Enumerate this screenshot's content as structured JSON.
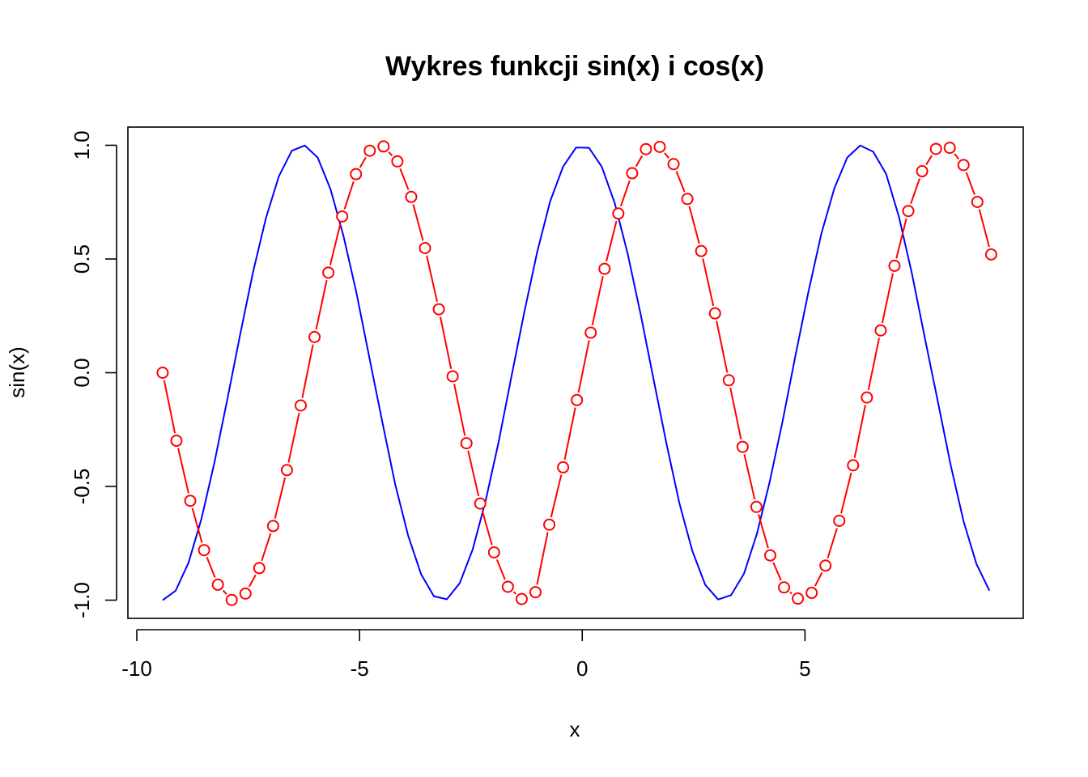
{
  "chart_data": {
    "type": "line",
    "title": "Wykres funkcji sin(x) i cos(x)",
    "xlabel": "x",
    "ylabel": "sin(x)",
    "xlim": [
      -10.2,
      9.9
    ],
    "ylim": [
      -1.08,
      1.08
    ],
    "x_ticks": [
      -10,
      -5,
      0,
      5
    ],
    "y_ticks": [
      -1.0,
      -0.5,
      0.0,
      0.5,
      1.0
    ],
    "x_tick_labels": [
      "-10",
      "-5",
      "0",
      "5"
    ],
    "y_tick_labels": [
      "-1.0",
      "-0.5",
      "0.0",
      "0.5",
      "1.0"
    ],
    "grid": false,
    "series": [
      {
        "function": "cos",
        "style": "line",
        "color": "#0000ff",
        "x": [
          -9.42,
          -9.13,
          -8.84,
          -8.55,
          -8.26,
          -7.97,
          -7.68,
          -7.39,
          -7.1,
          -6.81,
          -6.52,
          -6.23,
          -5.94,
          -5.65,
          -5.36,
          -5.07,
          -4.78,
          -4.49,
          -4.2,
          -3.91,
          -3.62,
          -3.33,
          -3.04,
          -2.75,
          -2.46,
          -2.17,
          -1.88,
          -1.59,
          -1.3,
          -1.01,
          -0.72,
          -0.43,
          -0.14,
          0.15,
          0.44,
          0.73,
          1.02,
          1.31,
          1.6,
          1.89,
          2.18,
          2.47,
          2.76,
          3.05,
          3.34,
          3.63,
          3.92,
          4.21,
          4.5,
          4.79,
          5.08,
          5.37,
          5.66,
          5.95,
          6.24,
          6.53,
          6.82,
          7.11,
          7.4,
          7.69,
          7.98,
          8.27,
          8.56,
          8.85,
          9.14
        ],
        "y": [
          -1.0,
          -0.959,
          -0.836,
          -0.643,
          -0.397,
          -0.119,
          0.168,
          0.443,
          0.681,
          0.864,
          0.976,
          0.999,
          0.946,
          0.806,
          0.601,
          0.352,
          0.067,
          -0.215,
          -0.49,
          -0.715,
          -0.885,
          -0.983,
          -0.996,
          -0.925,
          -0.777,
          -0.564,
          -0.307,
          -0.017,
          0.267,
          0.532,
          0.754,
          0.906,
          0.99,
          0.989,
          0.905,
          0.745,
          0.523,
          0.258,
          -0.028,
          -0.311,
          -0.573,
          -0.783,
          -0.932,
          -0.997,
          -0.978,
          -0.884,
          -0.709,
          -0.478,
          -0.211,
          0.079,
          0.358,
          0.613,
          0.811,
          0.946,
          0.999,
          0.972,
          0.875,
          0.685,
          0.437,
          0.154,
          -0.124,
          -0.405,
          -0.653,
          -0.841,
          -0.958
        ]
      },
      {
        "function": "sin",
        "style": "both",
        "color": "#ff0000",
        "x": [
          -9.42,
          -9.11,
          -8.8,
          -8.49,
          -8.18,
          -7.87,
          -7.56,
          -7.25,
          -6.94,
          -6.63,
          -6.32,
          -6.01,
          -5.7,
          -5.39,
          -5.08,
          -4.77,
          -4.46,
          -4.15,
          -3.84,
          -3.53,
          -3.22,
          -2.91,
          -2.6,
          -2.29,
          -1.98,
          -1.67,
          -1.36,
          -1.05,
          -0.74,
          -0.43,
          -0.12,
          0.19,
          0.5,
          0.81,
          1.12,
          1.43,
          1.74,
          2.05,
          2.36,
          2.67,
          2.98,
          3.29,
          3.6,
          3.91,
          4.22,
          4.53,
          4.84,
          5.15,
          5.46,
          5.77,
          6.08,
          6.39,
          6.7,
          7.01,
          7.32,
          7.63,
          7.94,
          8.25,
          8.56,
          8.87,
          9.18
        ],
        "y": [
          0.0,
          -0.299,
          -0.563,
          -0.78,
          -0.932,
          -0.999,
          -0.971,
          -0.859,
          -0.674,
          -0.428,
          -0.144,
          0.157,
          0.44,
          0.687,
          0.873,
          0.976,
          0.995,
          0.929,
          0.773,
          0.548,
          0.279,
          -0.016,
          -0.31,
          -0.575,
          -0.79,
          -0.941,
          -0.995,
          -0.965,
          -0.668,
          -0.416,
          -0.12,
          0.176,
          0.457,
          0.7,
          0.877,
          0.983,
          0.993,
          0.917,
          0.764,
          0.535,
          0.261,
          -0.033,
          -0.326,
          -0.59,
          -0.803,
          -0.944,
          -0.993,
          -0.968,
          -0.848,
          -0.651,
          -0.407,
          -0.109,
          0.186,
          0.47,
          0.711,
          0.886,
          0.984,
          0.989,
          0.913,
          0.751,
          0.52
        ]
      }
    ]
  }
}
